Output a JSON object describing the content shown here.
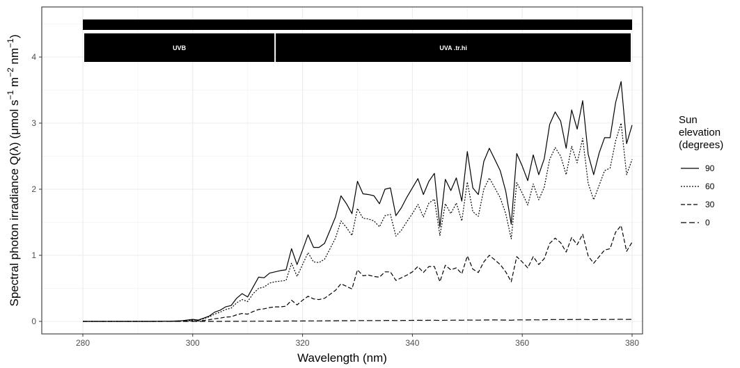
{
  "chart_data": {
    "type": "line",
    "xlabel": "Wavelength (nm)",
    "ylabel_parts": [
      "Spectral  photon  irradiance  Q(",
      "λ",
      ")  (μmol s",
      "−1",
      " m",
      "−2",
      " nm",
      "−1",
      ")"
    ],
    "xlim": [
      280,
      380
    ],
    "ylim": [
      0,
      4.5
    ],
    "x_ticks": [
      280,
      300,
      320,
      340,
      360,
      380
    ],
    "y_ticks": [
      0,
      1,
      2,
      3,
      4
    ],
    "grid": true,
    "legend": {
      "title_lines": [
        "Sun",
        "elevation",
        "(degrees)"
      ],
      "placement": "right"
    },
    "wavebands": [
      {
        "label": "UVB",
        "from": 280,
        "to": 315
      },
      {
        "label": "UVA .tr.hi",
        "from": 315,
        "to": 380
      }
    ],
    "top_bar": {
      "from": 280,
      "to": 380
    },
    "x": [
      280,
      282,
      284,
      286,
      288,
      290,
      292,
      294,
      296,
      298,
      300,
      301,
      302,
      303,
      304,
      305,
      306,
      307,
      308,
      309,
      310,
      311,
      312,
      313,
      314,
      315,
      316,
      317,
      318,
      319,
      320,
      321,
      322,
      323,
      324,
      325,
      326,
      327,
      328,
      329,
      330,
      331,
      332,
      333,
      334,
      335,
      336,
      337,
      338,
      339,
      340,
      341,
      342,
      343,
      344,
      345,
      346,
      347,
      348,
      349,
      350,
      351,
      352,
      353,
      354,
      355,
      356,
      357,
      358,
      359,
      360,
      361,
      362,
      363,
      364,
      365,
      366,
      367,
      368,
      369,
      370,
      371,
      372,
      373,
      374,
      375,
      376,
      377,
      378,
      379,
      380
    ],
    "series": [
      {
        "name": "90",
        "dash": "solid",
        "values": [
          0,
          0,
          0,
          0,
          0,
          0,
          0,
          0.001,
          0.003,
          0.01,
          0.03,
          0.02,
          0.05,
          0.08,
          0.14,
          0.17,
          0.22,
          0.24,
          0.35,
          0.42,
          0.37,
          0.52,
          0.67,
          0.66,
          0.73,
          0.75,
          0.77,
          0.78,
          1.1,
          0.86,
          1.08,
          1.31,
          1.12,
          1.12,
          1.18,
          1.38,
          1.58,
          1.9,
          1.78,
          1.63,
          2.12,
          1.93,
          1.92,
          1.9,
          1.78,
          2.0,
          2.02,
          1.6,
          1.72,
          1.88,
          2.02,
          2.16,
          1.92,
          2.12,
          2.24,
          1.43,
          2.15,
          1.98,
          2.17,
          1.82,
          2.57,
          2.02,
          1.92,
          2.42,
          2.62,
          2.45,
          2.28,
          1.97,
          1.47,
          2.54,
          2.35,
          2.13,
          2.52,
          2.22,
          2.46,
          2.98,
          3.17,
          3.03,
          2.62,
          3.2,
          2.91,
          3.34,
          2.53,
          2.22,
          2.55,
          2.78,
          2.78,
          3.31,
          3.63,
          2.69,
          2.97
        ]
      },
      {
        "name": "60",
        "dash": "dotted",
        "values": [
          0,
          0,
          0,
          0,
          0,
          0,
          0,
          0,
          0.002,
          0.008,
          0.02,
          0.016,
          0.04,
          0.07,
          0.11,
          0.14,
          0.18,
          0.2,
          0.28,
          0.33,
          0.3,
          0.42,
          0.5,
          0.52,
          0.58,
          0.6,
          0.61,
          0.62,
          0.88,
          0.68,
          0.86,
          1.04,
          0.9,
          0.89,
          0.94,
          1.1,
          1.26,
          1.52,
          1.42,
          1.3,
          1.71,
          1.56,
          1.55,
          1.52,
          1.43,
          1.6,
          1.62,
          1.29,
          1.38,
          1.51,
          1.63,
          1.77,
          1.58,
          1.79,
          1.85,
          1.3,
          1.78,
          1.63,
          1.79,
          1.52,
          2.11,
          1.66,
          1.59,
          2.0,
          2.17,
          2.02,
          1.87,
          1.63,
          1.25,
          2.1,
          1.94,
          1.76,
          2.08,
          1.84,
          2.03,
          2.45,
          2.63,
          2.5,
          2.22,
          2.65,
          2.4,
          2.77,
          2.09,
          1.84,
          2.06,
          2.28,
          2.32,
          2.73,
          3.0,
          2.22,
          2.45
        ]
      },
      {
        "name": "30",
        "dash": "dashed",
        "values": [
          0,
          0,
          0,
          0,
          0,
          0,
          0,
          0,
          0.001,
          0.003,
          0.008,
          0.006,
          0.015,
          0.025,
          0.04,
          0.05,
          0.065,
          0.07,
          0.1,
          0.12,
          0.11,
          0.15,
          0.18,
          0.19,
          0.21,
          0.22,
          0.22,
          0.23,
          0.32,
          0.25,
          0.32,
          0.38,
          0.34,
          0.33,
          0.35,
          0.41,
          0.47,
          0.57,
          0.53,
          0.49,
          0.78,
          0.69,
          0.7,
          0.68,
          0.67,
          0.75,
          0.75,
          0.62,
          0.66,
          0.7,
          0.75,
          0.83,
          0.74,
          0.83,
          0.83,
          0.6,
          0.85,
          0.78,
          0.81,
          0.72,
          0.99,
          0.79,
          0.74,
          0.9,
          1.0,
          0.93,
          0.86,
          0.75,
          0.6,
          0.98,
          0.9,
          0.81,
          0.98,
          0.86,
          0.95,
          1.18,
          1.26,
          1.19,
          1.05,
          1.27,
          1.16,
          1.32,
          0.99,
          0.88,
          0.98,
          1.08,
          1.1,
          1.35,
          1.45,
          1.06,
          1.2
        ]
      },
      {
        "name": "0",
        "dash": "longdash",
        "values": [
          0,
          0,
          0,
          0,
          0,
          0,
          0,
          0,
          0,
          0,
          0,
          0,
          0,
          0,
          0,
          0,
          0.001,
          0.001,
          0.001,
          0.002,
          0.002,
          0.002,
          0.003,
          0.003,
          0.004,
          0.004,
          0.004,
          0.005,
          0.006,
          0.005,
          0.006,
          0.007,
          0.007,
          0.007,
          0.008,
          0.009,
          0.01,
          0.011,
          0.011,
          0.011,
          0.013,
          0.013,
          0.013,
          0.013,
          0.013,
          0.014,
          0.015,
          0.013,
          0.014,
          0.015,
          0.016,
          0.017,
          0.016,
          0.017,
          0.018,
          0.015,
          0.018,
          0.018,
          0.019,
          0.018,
          0.021,
          0.019,
          0.019,
          0.021,
          0.022,
          0.022,
          0.021,
          0.02,
          0.018,
          0.023,
          0.023,
          0.022,
          0.024,
          0.023,
          0.024,
          0.027,
          0.028,
          0.028,
          0.027,
          0.029,
          0.028,
          0.03,
          0.027,
          0.026,
          0.028,
          0.029,
          0.029,
          0.031,
          0.032,
          0.029,
          0.03
        ]
      }
    ]
  }
}
